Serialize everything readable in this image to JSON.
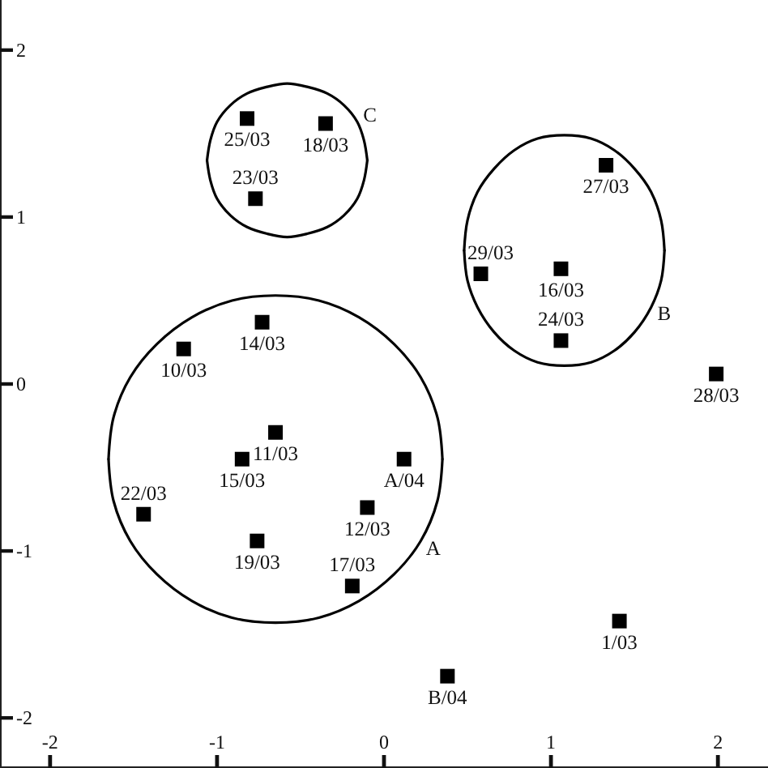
{
  "chart_data": {
    "type": "scatter",
    "xlim": [
      -2.3,
      2.3
    ],
    "ylim": [
      -2.3,
      2.3
    ],
    "xticks": [
      -2,
      -1,
      0,
      1,
      2
    ],
    "yticks": [
      2,
      1,
      0,
      -1,
      -2
    ],
    "marker": "square",
    "series": [
      {
        "color": "#000000",
        "x": [
          -0.82,
          -0.35,
          -0.77,
          1.33,
          0.58,
          1.06,
          -0.73,
          -1.2,
          1.06,
          1.99,
          -0.65,
          0.12,
          -0.85,
          -0.1,
          -1.44,
          -0.76,
          -0.19,
          1.41,
          0.38
        ],
        "values": [
          1.59,
          1.56,
          1.11,
          1.31,
          0.66,
          0.69,
          0.37,
          0.21,
          0.26,
          0.06,
          -0.29,
          -0.45,
          -0.45,
          -0.74,
          -0.78,
          -0.94,
          -1.21,
          -1.42,
          -1.75
        ]
      },
      {
        "type": "line",
        "marker": "none",
        "color": "#000000",
        "x": [
          -0.1,
          -0.12,
          -0.16,
          -0.24,
          -0.34,
          -0.46,
          -0.58,
          -0.7,
          -0.82,
          -0.92,
          -1.0,
          -1.04,
          -1.06
        ],
        "values": [
          1.34,
          1.46,
          1.57,
          1.67,
          1.74,
          1.78,
          1.8,
          1.78,
          1.74,
          1.67,
          1.57,
          1.46,
          1.34
        ]
      },
      {
        "type": "line",
        "marker": "none",
        "color": "#000000",
        "x": [
          -1.06,
          -1.04,
          -1.0,
          -0.92,
          -0.82,
          -0.7,
          -0.58,
          -0.46,
          -0.34,
          -0.24,
          -0.16,
          -0.12,
          -0.1
        ],
        "values": [
          1.34,
          1.22,
          1.11,
          1.01,
          0.94,
          0.9,
          0.88,
          0.9,
          0.94,
          1.01,
          1.11,
          1.22,
          1.34
        ]
      },
      {
        "type": "line",
        "marker": "none",
        "color": "#000000",
        "x": [
          1.68,
          1.66,
          1.6,
          1.5,
          1.38,
          1.24,
          1.08,
          0.92,
          0.78,
          0.66,
          0.56,
          0.5,
          0.48
        ],
        "values": [
          0.8,
          0.98,
          1.15,
          1.29,
          1.4,
          1.47,
          1.49,
          1.47,
          1.4,
          1.29,
          1.15,
          0.98,
          0.8
        ]
      },
      {
        "type": "line",
        "marker": "none",
        "color": "#000000",
        "x": [
          0.48,
          0.5,
          0.56,
          0.66,
          0.78,
          0.92,
          1.08,
          1.24,
          1.38,
          1.5,
          1.6,
          1.66,
          1.68
        ],
        "values": [
          0.8,
          0.62,
          0.46,
          0.31,
          0.2,
          0.13,
          0.11,
          0.13,
          0.2,
          0.31,
          0.46,
          0.62,
          0.8
        ]
      },
      {
        "type": "line",
        "marker": "none",
        "color": "#000000",
        "x": [
          0.35,
          0.32,
          0.22,
          0.06,
          -0.15,
          -0.39,
          -0.65,
          -0.91,
          -1.15,
          -1.36,
          -1.52,
          -1.62,
          -1.65
        ],
        "values": [
          -0.45,
          -0.2,
          0.04,
          0.24,
          0.4,
          0.5,
          0.53,
          0.5,
          0.4,
          0.24,
          0.04,
          -0.2,
          -0.45
        ]
      },
      {
        "type": "line",
        "marker": "none",
        "color": "#000000",
        "x": [
          -1.65,
          -1.62,
          -1.52,
          -1.36,
          -1.15,
          -0.91,
          -0.65,
          -0.39,
          -0.15,
          0.06,
          0.22,
          0.32,
          0.35
        ],
        "values": [
          -0.45,
          -0.7,
          -0.94,
          -1.14,
          -1.3,
          -1.4,
          -1.43,
          -1.4,
          -1.3,
          -1.14,
          -0.94,
          -0.7,
          -0.45
        ]
      }
    ],
    "annotations": [
      {
        "text": "25/03",
        "x": -0.82,
        "y": 1.59
      },
      {
        "text": "18/03",
        "x": -0.35,
        "y": 1.56
      },
      {
        "text": "23/03",
        "x": -0.77,
        "y": 1.11
      },
      {
        "text": "27/03",
        "x": 1.33,
        "y": 1.31
      },
      {
        "text": "29/03",
        "x": 0.58,
        "y": 0.66
      },
      {
        "text": "16/03",
        "x": 1.06,
        "y": 0.69
      },
      {
        "text": "14/03",
        "x": -0.73,
        "y": 0.37
      },
      {
        "text": "10/03",
        "x": -1.2,
        "y": 0.21
      },
      {
        "text": "24/03",
        "x": 1.06,
        "y": 0.26
      },
      {
        "text": "28/03",
        "x": 1.99,
        "y": 0.06
      },
      {
        "text": "11/03",
        "x": -0.65,
        "y": -0.29
      },
      {
        "text": "A/04",
        "x": 0.12,
        "y": -0.45
      },
      {
        "text": "15/03",
        "x": -0.85,
        "y": -0.45
      },
      {
        "text": "12/03",
        "x": -0.1,
        "y": -0.74
      },
      {
        "text": "22/03",
        "x": -1.44,
        "y": -0.78
      },
      {
        "text": "19/03",
        "x": -0.76,
        "y": -0.94
      },
      {
        "text": "17/03",
        "x": -0.19,
        "y": -1.21
      },
      {
        "text": "1/03",
        "x": 1.41,
        "y": -1.42
      },
      {
        "text": "B/04",
        "x": 0.38,
        "y": -1.75
      },
      {
        "text": "C",
        "x": -0.16,
        "y": 1.57
      },
      {
        "text": "B",
        "x": 1.6,
        "y": 0.46
      },
      {
        "text": "A",
        "x": 0.22,
        "y": -0.94
      }
    ]
  }
}
